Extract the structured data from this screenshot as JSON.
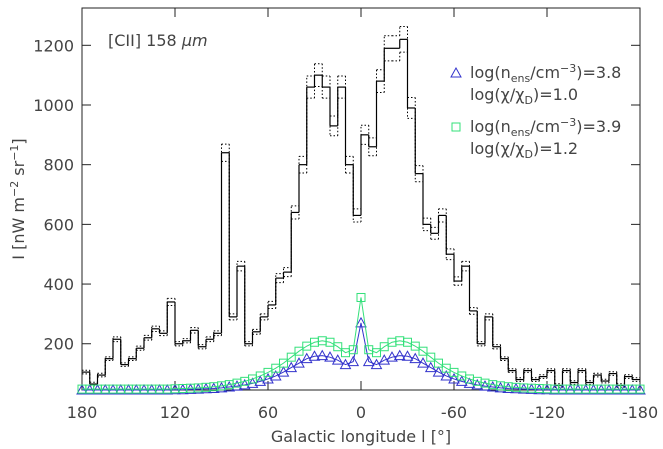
{
  "chart_data": {
    "type": "histogram",
    "annotation_parts": [
      {
        "text": "[CII] 158 "
      },
      {
        "text": "μm",
        "italic": true
      }
    ],
    "xlabel": "Galactic longitude l [°]",
    "ylabel_parts": [
      {
        "text": "I [nW m"
      },
      {
        "text": "−2",
        "sup": true
      },
      {
        "text": " sr"
      },
      {
        "text": "−1",
        "sup": true
      },
      {
        "text": "]"
      }
    ],
    "xlim": [
      180,
      -180
    ],
    "xticks": [
      180,
      120,
      60,
      0,
      -60,
      -120,
      -180
    ],
    "ylim": [
      45,
      1325
    ],
    "yticks": [
      200,
      400,
      600,
      800,
      1000,
      1200
    ],
    "color": "#000000",
    "bins": [
      180,
      175,
      170,
      165,
      160,
      155,
      150,
      145,
      140,
      135,
      130,
      125,
      120,
      115,
      110,
      105,
      100,
      95,
      90,
      85,
      80,
      75,
      70,
      65,
      60,
      55,
      50,
      45,
      40,
      35,
      30,
      25,
      20,
      15,
      10,
      5,
      0,
      -5,
      -10,
      -15,
      -20,
      -25,
      -30,
      -35,
      -40,
      -45,
      -50,
      -55,
      -60,
      -65,
      -70,
      -75,
      -80,
      -85,
      -90,
      -95,
      -100,
      -105,
      -110,
      -115,
      -120,
      -125,
      -130,
      -135,
      -140,
      -145,
      -150,
      -155,
      -160,
      -165,
      -170,
      -175,
      -180
    ],
    "values": [
      105,
      65,
      95,
      150,
      215,
      130,
      150,
      185,
      220,
      250,
      235,
      340,
      200,
      210,
      245,
      190,
      215,
      235,
      840,
      290,
      460,
      200,
      240,
      290,
      330,
      420,
      440,
      640,
      800,
      1060,
      1100,
      1060,
      930,
      1060,
      800,
      630,
      900,
      860,
      1080,
      1190,
      1190,
      1220,
      990,
      770,
      600,
      570,
      630,
      500,
      410,
      460,
      310,
      200,
      290,
      190,
      150,
      110,
      80,
      110,
      80,
      90,
      110,
      60,
      110,
      70,
      110,
      70,
      95,
      75,
      100,
      60,
      90,
      80
    ],
    "errors": [
      6,
      6,
      6,
      6,
      8,
      6,
      6,
      7,
      8,
      9,
      8,
      12,
      7,
      7,
      9,
      7,
      8,
      8,
      29,
      10,
      16,
      7,
      8,
      10,
      12,
      15,
      15,
      22,
      28,
      37,
      38,
      37,
      33,
      37,
      28,
      22,
      32,
      30,
      38,
      42,
      42,
      43,
      35,
      27,
      21,
      20,
      22,
      18,
      14,
      16,
      11,
      7,
      10,
      7,
      6,
      6,
      6,
      6,
      6,
      6,
      6,
      6,
      6,
      6,
      6,
      6,
      6,
      6,
      6,
      6,
      6,
      6
    ],
    "models": [
      {
        "color": "#3333cc",
        "marker": "triangle",
        "name_lines": [
          [
            {
              "text": "log(n"
            },
            {
              "text": "ens",
              "sub": true
            },
            {
              "text": "/cm"
            },
            {
              "text": "−3",
              "sup": true
            },
            {
              "text": ")=3.8"
            }
          ],
          [
            {
              "text": "log(χ/χ"
            },
            {
              "text": "D",
              "sub": true
            },
            {
              "text": ")=1.0"
            }
          ]
        ],
        "x": [
          180,
          175,
          170,
          165,
          160,
          155,
          150,
          145,
          140,
          135,
          130,
          125,
          120,
          115,
          110,
          105,
          100,
          95,
          90,
          85,
          80,
          75,
          70,
          65,
          60,
          55,
          50,
          45,
          40,
          35,
          30,
          25,
          20,
          15,
          10,
          5,
          0,
          -5,
          -10,
          -15,
          -20,
          -25,
          -30,
          -35,
          -40,
          -45,
          -50,
          -55,
          -60,
          -65,
          -70,
          -75,
          -80,
          -85,
          -90,
          -95,
          -100,
          -105,
          -110,
          -115,
          -120,
          -125,
          -130,
          -135,
          -140,
          -145,
          -150,
          -155,
          -160,
          -165,
          -170,
          -175,
          -180
        ],
        "values": [
          45,
          45,
          45,
          45,
          45,
          45,
          45,
          45,
          45,
          45,
          45,
          45,
          46,
          46,
          47,
          48,
          49,
          50,
          52,
          55,
          58,
          62,
          67,
          74,
          82,
          92,
          105,
          120,
          135,
          150,
          158,
          160,
          155,
          145,
          130,
          140,
          270,
          140,
          130,
          145,
          155,
          160,
          158,
          150,
          135,
          120,
          105,
          92,
          82,
          74,
          67,
          62,
          58,
          55,
          52,
          50,
          49,
          48,
          47,
          46,
          46,
          45,
          45,
          45,
          45,
          45,
          45,
          45,
          45,
          45,
          45,
          45,
          45
        ]
      },
      {
        "color": "#33e07a",
        "marker": "square",
        "name_lines": [
          [
            {
              "text": "log(n"
            },
            {
              "text": "ens",
              "sub": true
            },
            {
              "text": "/cm"
            },
            {
              "text": "−3",
              "sup": true
            },
            {
              "text": ")=3.9"
            }
          ],
          [
            {
              "text": "log(χ/χ"
            },
            {
              "text": "D",
              "sub": true
            },
            {
              "text": ")=1.2"
            }
          ]
        ],
        "x": [
          180,
          175,
          170,
          165,
          160,
          155,
          150,
          145,
          140,
          135,
          130,
          125,
          120,
          115,
          110,
          105,
          100,
          95,
          90,
          85,
          80,
          75,
          70,
          65,
          60,
          55,
          50,
          45,
          40,
          35,
          30,
          25,
          20,
          15,
          10,
          5,
          0,
          -5,
          -10,
          -15,
          -20,
          -25,
          -30,
          -35,
          -40,
          -45,
          -50,
          -55,
          -60,
          -65,
          -70,
          -75,
          -80,
          -85,
          -90,
          -95,
          -100,
          -105,
          -110,
          -115,
          -120,
          -125,
          -130,
          -135,
          -140,
          -145,
          -150,
          -155,
          -160,
          -165,
          -170,
          -175,
          -180
        ],
        "values": [
          48,
          48,
          48,
          48,
          48,
          48,
          48,
          48,
          48,
          48,
          48,
          48,
          49,
          50,
          51,
          52,
          54,
          56,
          59,
          63,
          68,
          74,
          82,
          92,
          104,
          118,
          135,
          155,
          175,
          192,
          205,
          210,
          205,
          190,
          170,
          180,
          355,
          180,
          170,
          190,
          205,
          210,
          205,
          192,
          175,
          155,
          135,
          118,
          104,
          92,
          82,
          74,
          68,
          63,
          59,
          56,
          54,
          52,
          51,
          50,
          49,
          48,
          48,
          48,
          48,
          48,
          48,
          48,
          48,
          48,
          48,
          48,
          48
        ]
      }
    ]
  }
}
